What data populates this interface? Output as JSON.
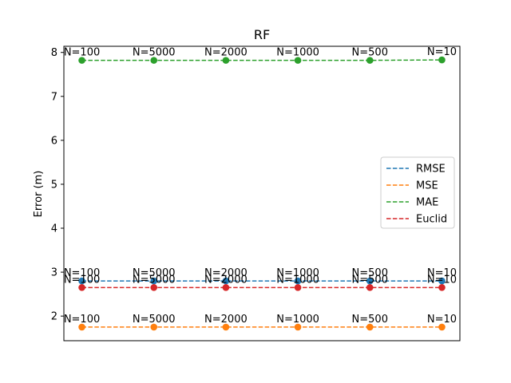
{
  "chart_data": {
    "type": "line",
    "title": "RF",
    "xlabel": "",
    "ylabel": "Error (m)",
    "x": [
      0,
      1,
      2,
      3,
      4,
      5
    ],
    "point_labels": [
      "N=100",
      "N=5000",
      "N=2000",
      "N=1000",
      "N=500",
      "N=10"
    ],
    "ylim": [
      1.44,
      8.14
    ],
    "yticks": [
      2,
      3,
      4,
      5,
      6,
      7,
      8
    ],
    "grid": false,
    "legend_position": "center-right",
    "series": [
      {
        "name": "RMSE",
        "color": "#1f77b4",
        "values": [
          2.8,
          2.8,
          2.8,
          2.8,
          2.8,
          2.8
        ]
      },
      {
        "name": "MSE",
        "color": "#ff7f0e",
        "values": [
          1.75,
          1.75,
          1.75,
          1.75,
          1.75,
          1.75
        ]
      },
      {
        "name": "MAE",
        "color": "#2ca02c",
        "values": [
          7.82,
          7.82,
          7.82,
          7.82,
          7.82,
          7.83
        ]
      },
      {
        "name": "Euclid",
        "color": "#d62728",
        "values": [
          2.65,
          2.65,
          2.65,
          2.65,
          2.65,
          2.65
        ]
      }
    ]
  }
}
